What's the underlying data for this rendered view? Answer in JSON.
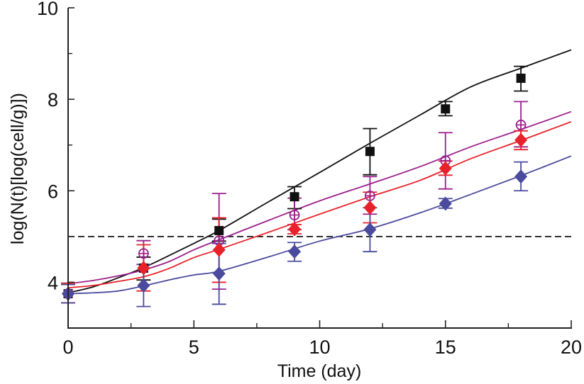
{
  "chart_data": {
    "type": "scatter",
    "title": "",
    "xlabel": "Time (day)",
    "ylabel": "log(N(t)[log(cell/g)])",
    "xlim": [
      0,
      20
    ],
    "ylim": [
      3,
      10
    ],
    "x_major_ticks": [
      0,
      5,
      10,
      15,
      20
    ],
    "x_minor_ticks": [
      2.5,
      7.5,
      12.5,
      17.5
    ],
    "y_major_ticks": [
      4,
      6,
      8,
      10
    ],
    "y_minor_ticks": [
      5,
      7,
      9
    ],
    "x_tick_labels": [
      "0",
      "5",
      "10",
      "15",
      "20"
    ],
    "y_tick_labels": [
      "4",
      "6",
      "8",
      "10"
    ],
    "grid": false,
    "legend": "none",
    "reference_line": {
      "y": 5,
      "style": "dashed",
      "color": "#111111"
    },
    "series": [
      {
        "name": "black-squares",
        "marker": "square",
        "color": "#111111",
        "x": [
          0,
          3,
          6,
          9,
          12,
          15,
          18
        ],
        "y": [
          3.75,
          4.31,
          5.13,
          5.87,
          6.86,
          7.79,
          8.46
        ],
        "err_low": [
          3.55,
          4.05,
          4.9,
          5.61,
          6.35,
          7.64,
          8.18
        ],
        "err_high": [
          3.98,
          4.55,
          5.38,
          6.09,
          7.36,
          7.95,
          8.72
        ],
        "fit": {
          "x": [
            0,
            1,
            2,
            3,
            4,
            5,
            6,
            8,
            10,
            12,
            14,
            16,
            18,
            20
          ],
          "y": [
            3.77,
            3.9,
            4.1,
            4.32,
            4.58,
            4.85,
            5.13,
            5.77,
            6.4,
            7.04,
            7.66,
            8.27,
            8.68,
            9.08
          ]
        }
      },
      {
        "name": "purple-circles",
        "marker": "circle-plus",
        "color": "#9c1f8c",
        "x": [
          0,
          3,
          6,
          9,
          12,
          15,
          18
        ],
        "y": [
          3.75,
          4.63,
          4.91,
          5.47,
          5.89,
          6.66,
          7.44
        ],
        "err_low": [
          3.55,
          4.39,
          3.85,
          5.15,
          5.49,
          6.04,
          6.96
        ],
        "err_high": [
          3.98,
          4.91,
          5.94,
          5.84,
          6.31,
          7.27,
          7.95
        ],
        "fit": {
          "x": [
            0,
            1,
            2,
            3,
            4,
            5,
            6,
            8,
            10,
            12,
            14,
            16,
            18,
            20
          ],
          "y": [
            3.97,
            4.04,
            4.14,
            4.27,
            4.45,
            4.71,
            4.93,
            5.36,
            5.78,
            6.15,
            6.53,
            6.96,
            7.34,
            7.73
          ]
        }
      },
      {
        "name": "red-diamonds",
        "marker": "diamond",
        "color": "#e8222a",
        "x": [
          0,
          3,
          6,
          9,
          12,
          15,
          18
        ],
        "y": [
          3.75,
          4.31,
          4.71,
          5.16,
          5.63,
          6.49,
          7.11
        ],
        "err_low": [
          3.55,
          3.81,
          4.0,
          5.06,
          5.3,
          6.34,
          6.9
        ],
        "err_high": [
          3.98,
          4.82,
          5.41,
          5.26,
          5.97,
          6.65,
          7.31
        ],
        "fit": {
          "x": [
            0,
            1,
            2,
            3,
            4,
            5,
            6,
            8,
            10,
            12,
            14,
            16,
            18,
            20
          ],
          "y": [
            3.88,
            3.93,
            4.02,
            4.12,
            4.3,
            4.54,
            4.72,
            5.1,
            5.49,
            5.87,
            6.23,
            6.7,
            7.1,
            7.51
          ]
        }
      },
      {
        "name": "blue-diamonds",
        "marker": "diamond",
        "color": "#4a4a9e",
        "x": [
          0,
          3,
          6,
          9,
          12,
          15,
          18
        ],
        "y": [
          3.75,
          3.93,
          4.19,
          4.67,
          5.15,
          5.72,
          6.31
        ],
        "err_low": [
          3.55,
          3.47,
          3.52,
          4.46,
          4.67,
          5.62,
          6.0
        ],
        "err_high": [
          3.95,
          4.39,
          4.85,
          4.87,
          5.63,
          5.83,
          6.63
        ],
        "fit": {
          "x": [
            0,
            1,
            2,
            3,
            4,
            5,
            6,
            8,
            10,
            12,
            14,
            16,
            18,
            20
          ],
          "y": [
            3.75,
            3.77,
            3.81,
            3.92,
            4.05,
            4.16,
            4.24,
            4.56,
            4.9,
            5.17,
            5.52,
            5.92,
            6.33,
            6.76
          ]
        }
      }
    ]
  }
}
